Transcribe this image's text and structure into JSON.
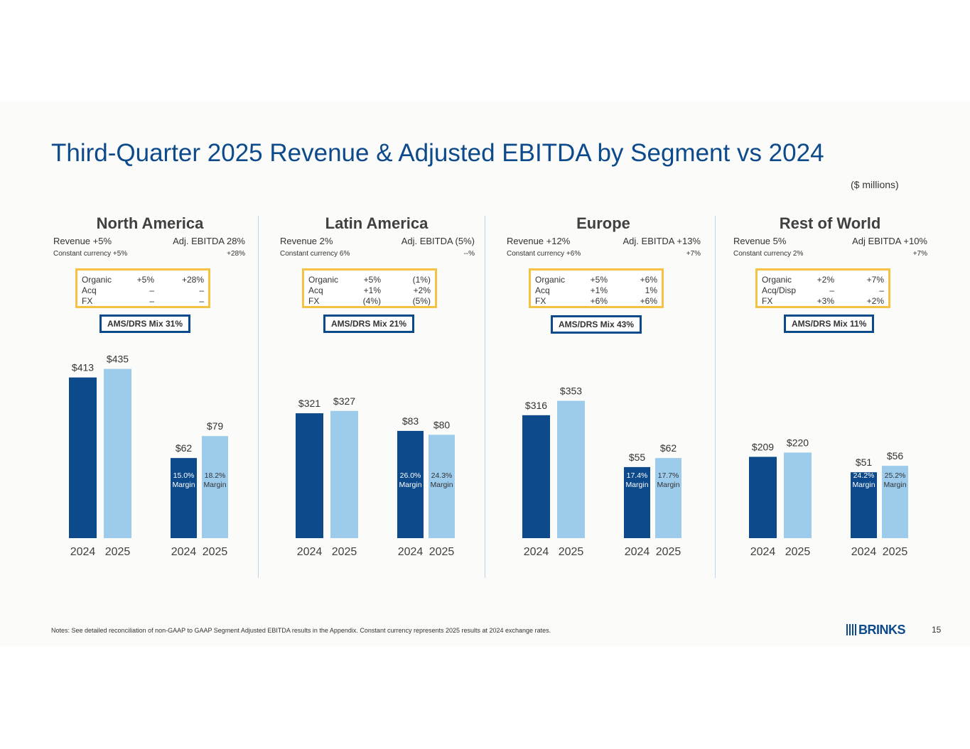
{
  "title": "Third-Quarter 2025 Revenue & Adjusted EBITDA by Segment vs 2024",
  "units": "($ millions)",
  "notes": "Notes: See detailed reconciliation of non-GAAP to GAAP Segment Adjusted EBITDA results in the Appendix. Constant currency represents 2025 results at 2024 exchange rates.",
  "page_number": "15",
  "logo_text": "BRINKS",
  "colors": {
    "title": "#0c4a8c",
    "bar_2024": "#0c4a8c",
    "bar_2025": "#9ccbec",
    "bridge_border": "#f6c244",
    "mix_border": "#0c4a8c"
  },
  "segments": [
    {
      "name": "North America",
      "revenue_label": "Revenue +5%",
      "ebitda_label": "Adj. EBITDA 28%",
      "cc_label": "Constant currency +5%",
      "cc_ebitda": "+28%",
      "bridge": [
        {
          "label": "Organic",
          "rev": "+5%",
          "ebitda": "+28%"
        },
        {
          "label": "Acq",
          "rev": "–",
          "ebitda": "–"
        },
        {
          "label": "FX",
          "rev": "–",
          "ebitda": "–"
        }
      ],
      "mix": "AMS/DRS Mix  31%"
    },
    {
      "name": "Latin America",
      "revenue_label": "Revenue 2%",
      "ebitda_label": "Adj. EBITDA (5%)",
      "cc_label": "Constant currency 6%",
      "cc_ebitda": "--%",
      "bridge": [
        {
          "label": "Organic",
          "rev": "+5%",
          "ebitda": "(1%)"
        },
        {
          "label": "Acq",
          "rev": "+1%",
          "ebitda": "+2%"
        },
        {
          "label": "FX",
          "rev": "(4%)",
          "ebitda": "(5%)"
        }
      ],
      "mix": "AMS/DRS Mix  21%"
    },
    {
      "name": "Europe",
      "revenue_label": "Revenue +12%",
      "ebitda_label": "Adj. EBITDA +13%",
      "cc_label": "Constant currency +6%",
      "cc_ebitda": "+7%",
      "bridge": [
        {
          "label": "Organic",
          "rev": "+5%",
          "ebitda": "+6%"
        },
        {
          "label": "Acq",
          "rev": "+1%",
          "ebitda": "1%"
        },
        {
          "label": "FX",
          "rev": "+6%",
          "ebitda": "+6%"
        }
      ],
      "mix": "AMS/DRS Mix  43%"
    },
    {
      "name": "Rest of World",
      "revenue_label": "Revenue 5%",
      "ebitda_label": "Adj EBITDA +10%",
      "cc_label": "Constant currency 2%",
      "cc_ebitda": "+7%",
      "bridge": [
        {
          "label": "Organic",
          "rev": "+2%",
          "ebitda": "+7%"
        },
        {
          "label": "Acq/Disp",
          "rev": "–",
          "ebitda": "–"
        },
        {
          "label": "FX",
          "rev": "+3%",
          "ebitda": "+2%"
        }
      ],
      "mix": "AMS/DRS Mix  11%"
    }
  ],
  "chart_data": [
    {
      "type": "bar",
      "title": "North America",
      "categories": [
        "2024",
        "2025"
      ],
      "series": [
        {
          "values": [
            413,
            435
          ],
          "labels": [
            "$413",
            "$435"
          ]
        },
        {
          "values": [
            62,
            79
          ],
          "labels": [
            "$62",
            "$79"
          ],
          "margins": [
            "15.0% Margin",
            "18.2% Margin"
          ]
        }
      ]
    },
    {
      "type": "bar",
      "title": "Latin America",
      "categories": [
        "2024",
        "2025"
      ],
      "series": [
        {
          "values": [
            321,
            327
          ],
          "labels": [
            "$321",
            "$327"
          ]
        },
        {
          "values": [
            83,
            80
          ],
          "labels": [
            "$83",
            "$80"
          ],
          "margins": [
            "26.0% Margin",
            "24.3% Margin"
          ]
        }
      ]
    },
    {
      "type": "bar",
      "title": "Europe",
      "categories": [
        "2024",
        "2025"
      ],
      "series": [
        {
          "values": [
            316,
            353
          ],
          "labels": [
            "$316",
            "$353"
          ]
        },
        {
          "values": [
            55,
            62
          ],
          "labels": [
            "$55",
            "$62"
          ],
          "margins": [
            "17.4% Margin",
            "17.7% Margin"
          ]
        }
      ]
    },
    {
      "type": "bar",
      "title": "Rest of World",
      "categories": [
        "2024",
        "2025"
      ],
      "series": [
        {
          "values": [
            209,
            220
          ],
          "labels": [
            "$209",
            "$220"
          ]
        },
        {
          "values": [
            51,
            56
          ],
          "labels": [
            "$51",
            "$56"
          ],
          "margins": [
            "24.2% Margin",
            "25.2% Margin"
          ]
        }
      ]
    }
  ]
}
